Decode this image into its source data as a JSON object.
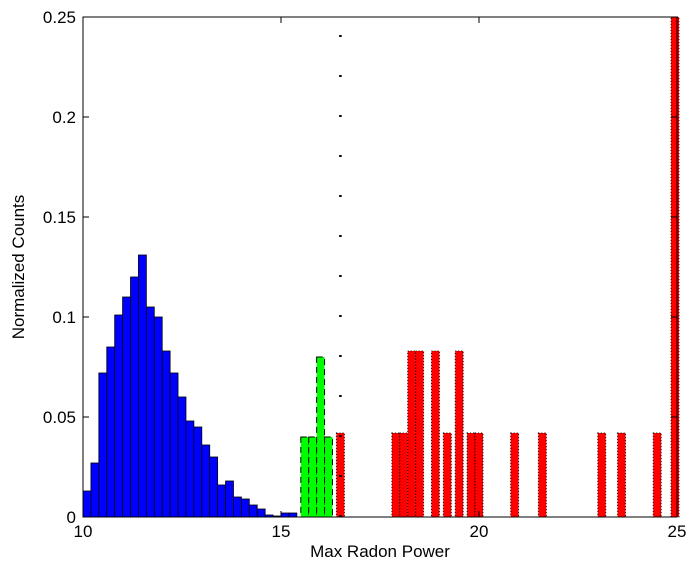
{
  "chart_data": {
    "type": "bar",
    "xlabel": "Max Radon Power",
    "ylabel": "Normalized Counts",
    "xlim": [
      10,
      25
    ],
    "ylim": [
      0,
      0.25
    ],
    "x_ticks": [
      "10",
      "15",
      "20",
      "25"
    ],
    "y_ticks": [
      "0",
      "0.05",
      "0.1",
      "0.15",
      "0.2",
      "0.25"
    ],
    "grid": false,
    "threshold_x": 16.5,
    "series": [
      {
        "color": "#0000ff",
        "style": "solid",
        "bin_width": 0.2,
        "x": [
          10.1,
          10.3,
          10.5,
          10.7,
          10.9,
          11.1,
          11.3,
          11.5,
          11.7,
          11.9,
          12.1,
          12.3,
          12.5,
          12.7,
          12.9,
          13.1,
          13.3,
          13.5,
          13.7,
          13.9,
          14.1,
          14.3,
          14.5,
          14.7,
          14.9,
          15.1,
          15.3
        ],
        "values": [
          0.013,
          0.027,
          0.072,
          0.085,
          0.101,
          0.11,
          0.12,
          0.131,
          0.105,
          0.1,
          0.083,
          0.072,
          0.06,
          0.048,
          0.045,
          0.036,
          0.03,
          0.016,
          0.018,
          0.01,
          0.009,
          0.006,
          0.004,
          0.001,
          0.0005,
          0.002,
          0.002
        ]
      },
      {
        "color": "#00ff00",
        "style": "dashed",
        "bin_width": 0.2,
        "x": [
          15.6,
          15.8,
          16.0,
          16.2
        ],
        "values": [
          0.04,
          0.04,
          0.08,
          0.04
        ]
      },
      {
        "color": "#ff0000",
        "style": "dotted",
        "bin_width": 0.2,
        "x": [
          16.5,
          17.9,
          18.1,
          18.3,
          18.5,
          18.9,
          19.2,
          19.5,
          19.8,
          20.0,
          20.9,
          21.6,
          23.1,
          23.6,
          24.5,
          24.95
        ],
        "values": [
          0.042,
          0.042,
          0.042,
          0.083,
          0.083,
          0.083,
          0.042,
          0.083,
          0.042,
          0.042,
          0.042,
          0.042,
          0.042,
          0.042,
          0.042,
          0.25
        ]
      }
    ]
  }
}
